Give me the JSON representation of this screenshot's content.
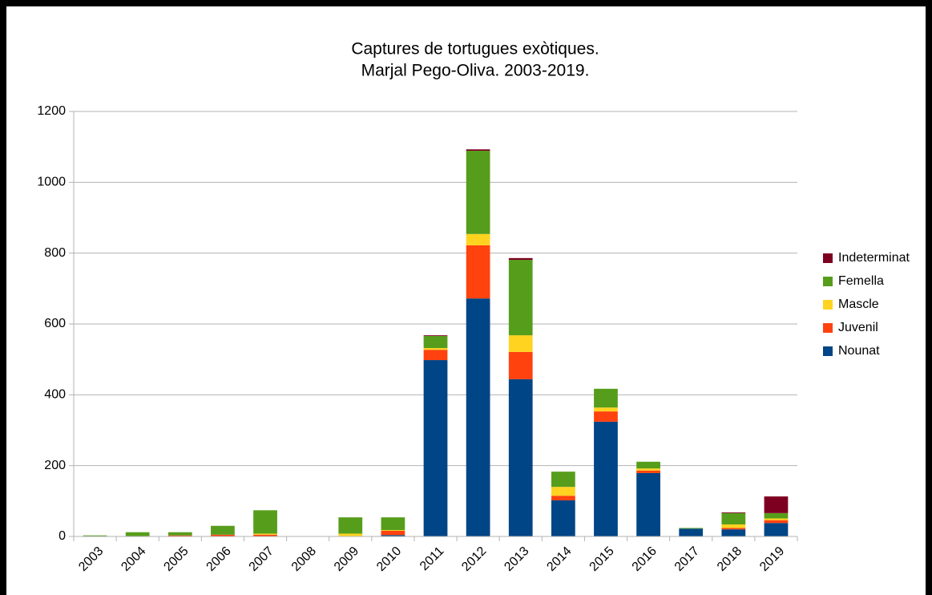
{
  "chart_data": {
    "type": "stacked_bar",
    "title": "Captures de tortugues exòtiques.",
    "subtitle": "Marjal Pego-Oliva. 2003-2019.",
    "categories": [
      "2003",
      "2004",
      "2005",
      "2006",
      "2007",
      "2008",
      "2009",
      "2010",
      "2011",
      "2012",
      "2013",
      "2014",
      "2015",
      "2016",
      "2017",
      "2018",
      "2019"
    ],
    "series": [
      {
        "name": "Nounat",
        "color": "#004586",
        "values": [
          0,
          0,
          0,
          0,
          0,
          0,
          0,
          4,
          498,
          672,
          444,
          102,
          324,
          179,
          22,
          20,
          38
        ]
      },
      {
        "name": "Juvenil",
        "color": "#ff420e",
        "values": [
          0,
          1,
          3,
          5,
          5,
          0,
          0,
          12,
          29,
          150,
          77,
          13,
          29,
          7,
          0,
          4,
          8
        ]
      },
      {
        "name": "Mascle",
        "color": "#ffd320",
        "values": [
          0,
          0,
          0,
          0,
          3,
          0,
          8,
          2,
          5,
          32,
          47,
          25,
          11,
          6,
          0,
          10,
          5
        ]
      },
      {
        "name": "Femella",
        "color": "#579d1c",
        "values": [
          3,
          11,
          9,
          25,
          66,
          0,
          46,
          36,
          34,
          235,
          213,
          43,
          53,
          19,
          2,
          32,
          15
        ]
      },
      {
        "name": "Indeterminat",
        "color": "#7e0021",
        "values": [
          0,
          0,
          0,
          0,
          0,
          0,
          0,
          0,
          2,
          4,
          5,
          0,
          0,
          0,
          0,
          2,
          47
        ]
      }
    ],
    "ylim": [
      0,
      1200
    ],
    "yticks": [
      0,
      200,
      400,
      600,
      800,
      1000,
      1200
    ],
    "grid": true,
    "legend": "right"
  }
}
